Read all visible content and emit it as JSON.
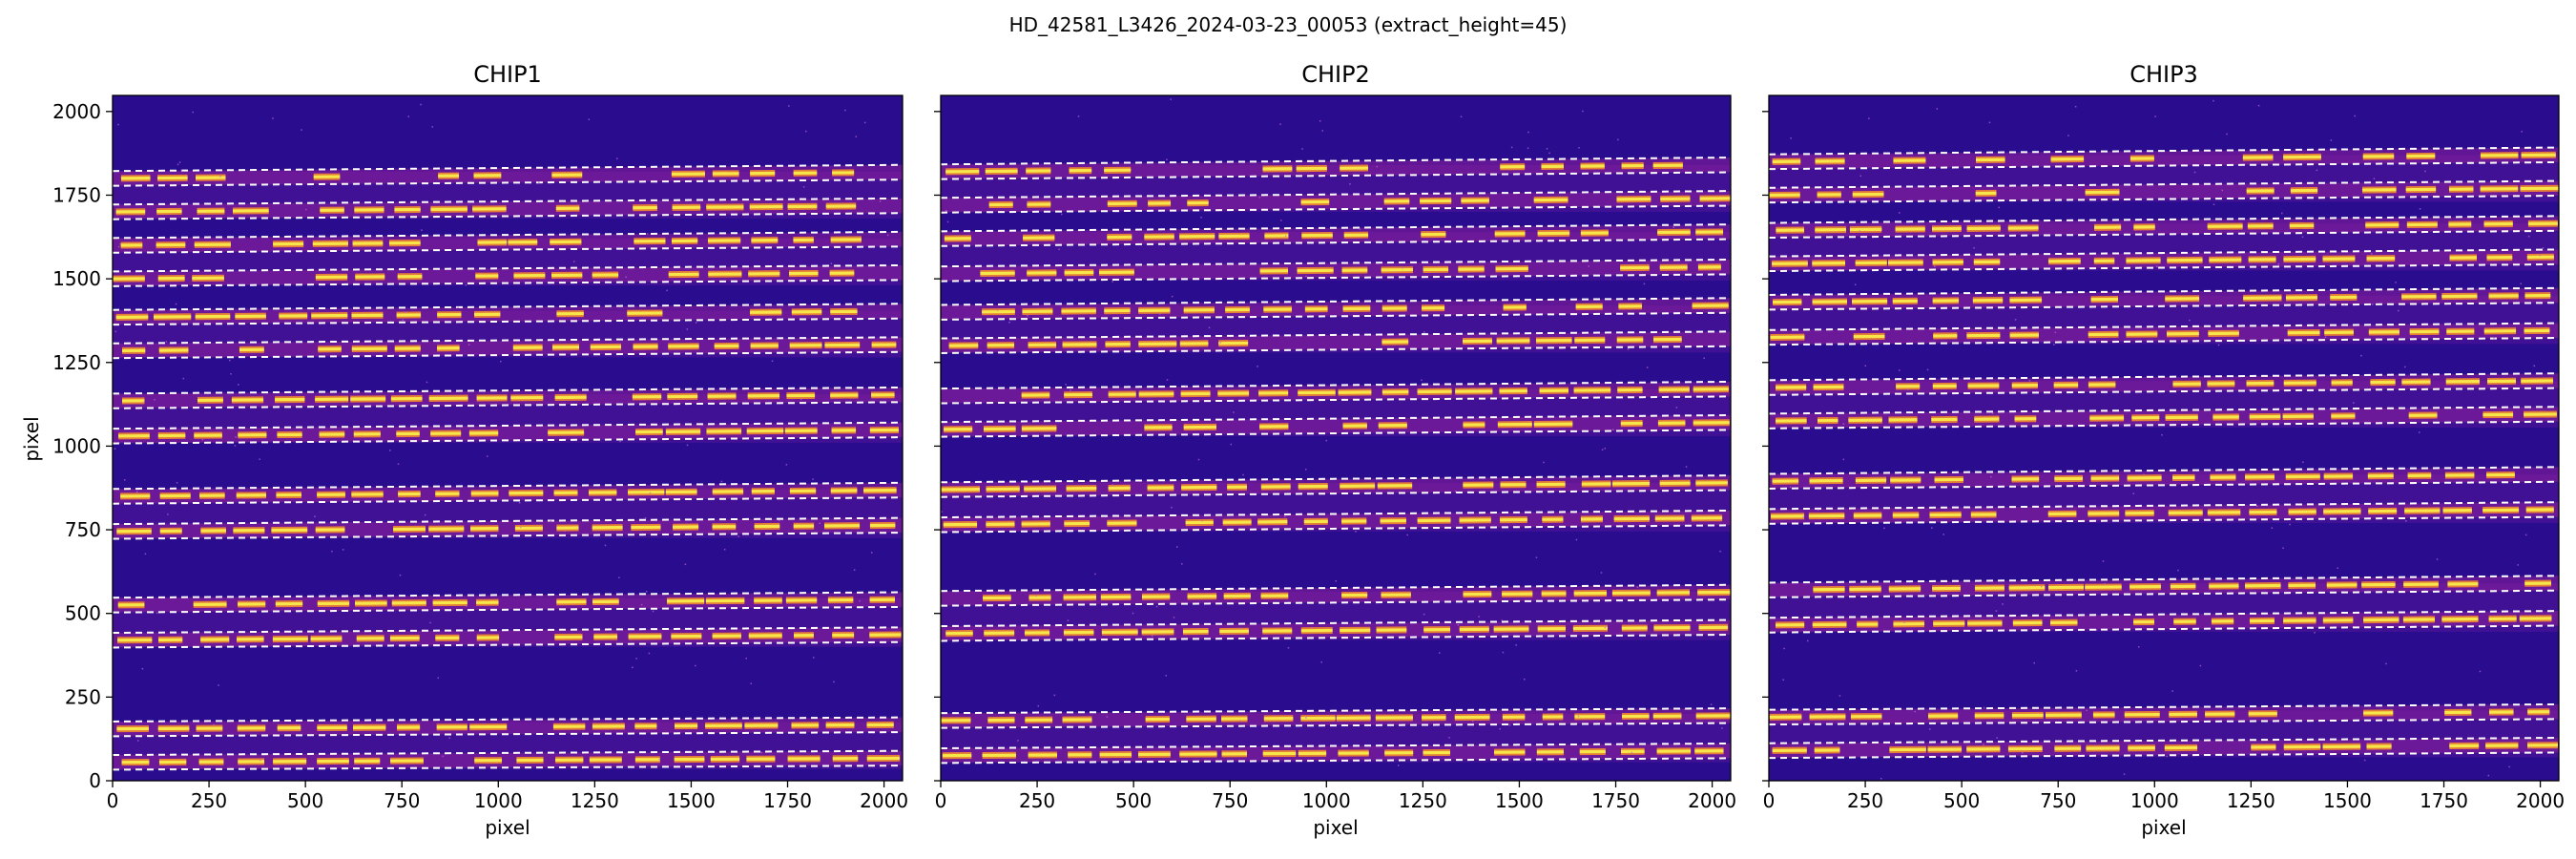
{
  "figure": {
    "suptitle": "HD_42581_L3426_2024-03-23_00053  (extract_height=45)"
  },
  "chart_data": [
    {
      "type": "heatmap",
      "title": "CHIP1",
      "xlabel": "pixel",
      "ylabel": "pixel",
      "xlim": [
        0,
        2048
      ],
      "ylim": [
        0,
        2048
      ],
      "xticks": [
        0,
        250,
        500,
        750,
        1000,
        1250,
        1500,
        1750,
        2000
      ],
      "yticks": [
        0,
        250,
        500,
        750,
        1000,
        1250,
        1500,
        1750,
        2000
      ],
      "colormap": "plasma",
      "background_color": "#2a0d8f",
      "trace_line_style": "white dashed",
      "orders": [
        {
          "center": 55,
          "halfwidth": 22,
          "brightness": 0.85,
          "slope": 0.006
        },
        {
          "center": 155,
          "halfwidth": 22,
          "brightness": 0.95,
          "slope": 0.006
        },
        {
          "center": 420,
          "halfwidth": 22,
          "brightness": 0.95,
          "slope": 0.008
        },
        {
          "center": 525,
          "halfwidth": 22,
          "brightness": 0.7,
          "slope": 0.008
        },
        {
          "center": 745,
          "halfwidth": 22,
          "brightness": 0.9,
          "slope": 0.009
        },
        {
          "center": 850,
          "halfwidth": 22,
          "brightness": 0.95,
          "slope": 0.009
        },
        {
          "center": 1030,
          "halfwidth": 22,
          "brightness": 0.8,
          "slope": 0.009
        },
        {
          "center": 1135,
          "halfwidth": 22,
          "brightness": 0.85,
          "slope": 0.009
        },
        {
          "center": 1285,
          "halfwidth": 22,
          "brightness": 0.65,
          "slope": 0.009
        },
        {
          "center": 1385,
          "halfwidth": 22,
          "brightness": 0.7,
          "slope": 0.009
        },
        {
          "center": 1500,
          "halfwidth": 22,
          "brightness": 0.6,
          "slope": 0.009
        },
        {
          "center": 1600,
          "halfwidth": 22,
          "brightness": 0.65,
          "slope": 0.009
        },
        {
          "center": 1700,
          "halfwidth": 22,
          "brightness": 0.5,
          "slope": 0.009
        },
        {
          "center": 1800,
          "halfwidth": 22,
          "brightness": 0.5,
          "slope": 0.009
        }
      ]
    },
    {
      "type": "heatmap",
      "title": "CHIP2",
      "xlabel": "pixel",
      "ylabel": "",
      "xlim": [
        0,
        2048
      ],
      "ylim": [
        0,
        2048
      ],
      "xticks": [
        0,
        250,
        500,
        750,
        1000,
        1250,
        1500,
        1750,
        2000
      ],
      "yticks": [
        0,
        250,
        500,
        750,
        1000,
        1250,
        1500,
        1750,
        2000
      ],
      "colormap": "plasma",
      "background_color": "#2a0d8f",
      "trace_line_style": "white dashed",
      "orders": [
        {
          "center": 75,
          "halfwidth": 22,
          "brightness": 0.8,
          "slope": 0.007
        },
        {
          "center": 180,
          "halfwidth": 22,
          "brightness": 0.85,
          "slope": 0.007
        },
        {
          "center": 440,
          "halfwidth": 22,
          "brightness": 0.9,
          "slope": 0.009
        },
        {
          "center": 545,
          "halfwidth": 22,
          "brightness": 0.8,
          "slope": 0.009
        },
        {
          "center": 765,
          "halfwidth": 22,
          "brightness": 0.9,
          "slope": 0.01
        },
        {
          "center": 870,
          "halfwidth": 22,
          "brightness": 0.85,
          "slope": 0.01
        },
        {
          "center": 1050,
          "halfwidth": 22,
          "brightness": 0.8,
          "slope": 0.01
        },
        {
          "center": 1150,
          "halfwidth": 22,
          "brightness": 0.75,
          "slope": 0.01
        },
        {
          "center": 1300,
          "halfwidth": 22,
          "brightness": 0.6,
          "slope": 0.01
        },
        {
          "center": 1400,
          "halfwidth": 22,
          "brightness": 0.65,
          "slope": 0.01
        },
        {
          "center": 1515,
          "halfwidth": 22,
          "brightness": 0.6,
          "slope": 0.01
        },
        {
          "center": 1620,
          "halfwidth": 22,
          "brightness": 0.55,
          "slope": 0.01
        },
        {
          "center": 1720,
          "halfwidth": 22,
          "brightness": 0.5,
          "slope": 0.01
        },
        {
          "center": 1820,
          "halfwidth": 22,
          "brightness": 0.5,
          "slope": 0.01
        }
      ]
    },
    {
      "type": "heatmap",
      "title": "CHIP3",
      "xlabel": "pixel",
      "ylabel": "",
      "xlim": [
        0,
        2048
      ],
      "ylim": [
        0,
        2048
      ],
      "xticks": [
        0,
        250,
        500,
        750,
        1000,
        1250,
        1500,
        1750,
        2000
      ],
      "yticks": [
        0,
        250,
        500,
        750,
        1000,
        1250,
        1500,
        1750,
        2000
      ],
      "colormap": "plasma",
      "background_color": "#2a0d8f",
      "trace_line_style": "white dashed",
      "orders": [
        {
          "center": 90,
          "halfwidth": 22,
          "brightness": 0.85,
          "slope": 0.008
        },
        {
          "center": 190,
          "halfwidth": 22,
          "brightness": 0.6,
          "slope": 0.008
        },
        {
          "center": 465,
          "halfwidth": 22,
          "brightness": 0.9,
          "slope": 0.01
        },
        {
          "center": 570,
          "halfwidth": 22,
          "brightness": 0.9,
          "slope": 0.01
        },
        {
          "center": 790,
          "halfwidth": 22,
          "brightness": 0.9,
          "slope": 0.01
        },
        {
          "center": 895,
          "halfwidth": 22,
          "brightness": 0.85,
          "slope": 0.01
        },
        {
          "center": 1075,
          "halfwidth": 22,
          "brightness": 0.8,
          "slope": 0.01
        },
        {
          "center": 1175,
          "halfwidth": 22,
          "brightness": 0.8,
          "slope": 0.01
        },
        {
          "center": 1325,
          "halfwidth": 22,
          "brightness": 0.65,
          "slope": 0.01
        },
        {
          "center": 1430,
          "halfwidth": 22,
          "brightness": 0.55,
          "slope": 0.01
        },
        {
          "center": 1545,
          "halfwidth": 22,
          "brightness": 0.6,
          "slope": 0.01
        },
        {
          "center": 1645,
          "halfwidth": 22,
          "brightness": 0.6,
          "slope": 0.01
        },
        {
          "center": 1750,
          "halfwidth": 22,
          "brightness": 0.5,
          "slope": 0.01
        },
        {
          "center": 1850,
          "halfwidth": 22,
          "brightness": 0.55,
          "slope": 0.01
        }
      ]
    }
  ]
}
